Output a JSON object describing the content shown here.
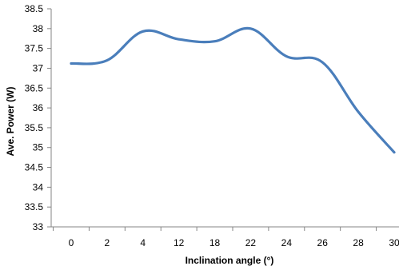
{
  "chart_data": {
    "type": "line",
    "xlabel": "Inclination angle  (°)",
    "ylabel": "Ave. Power (W)",
    "categories": [
      "0",
      "2",
      "4",
      "12",
      "18",
      "22",
      "24",
      "26",
      "28",
      "30"
    ],
    "series": [
      {
        "values": [
          37.12,
          37.2,
          37.93,
          37.73,
          37.68,
          38.0,
          37.3,
          37.15,
          35.9,
          34.88
        ],
        "color": "#4a7ebb"
      }
    ],
    "ylim": [
      33,
      38.5
    ],
    "yticks": [
      "33",
      "33.5",
      "34",
      "34.5",
      "35",
      "35.5",
      "36",
      "36.5",
      "37",
      "37.5",
      "38",
      "38.5"
    ],
    "grid": false,
    "legend": "none",
    "axis_color": "#868686"
  }
}
